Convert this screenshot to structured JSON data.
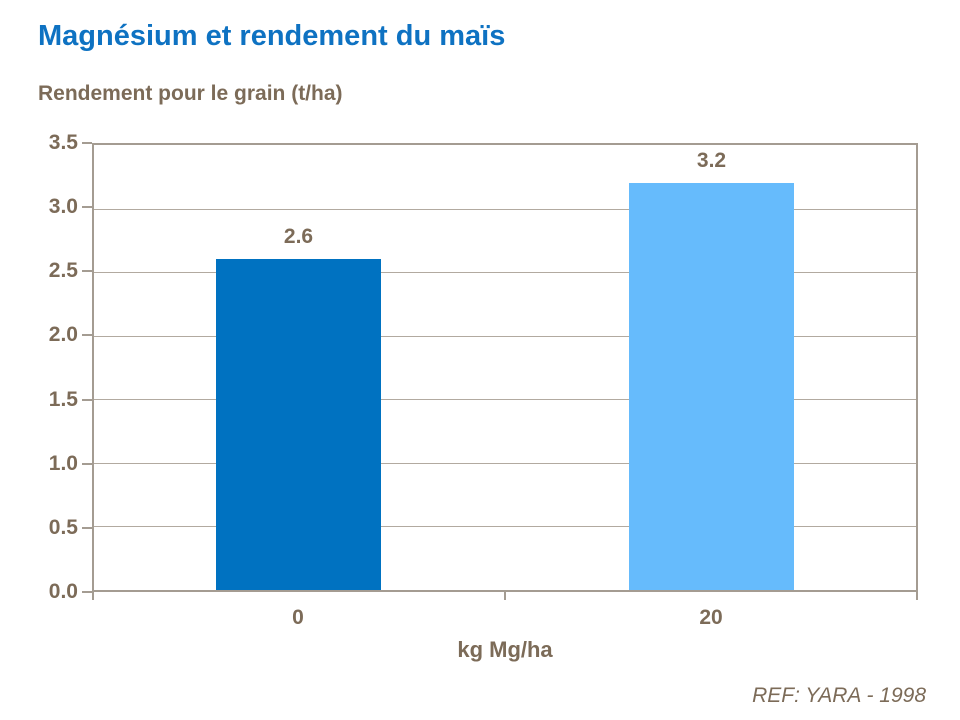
{
  "title": "Magnésium et rendement du maïs",
  "subtitle": "Rendement pour le grain (t/ha)",
  "reference": "REF: YARA - 1998",
  "colors": {
    "title_blue": "#0E72C2",
    "text_brown": "#7C6B58",
    "frame": "#A49C92",
    "gridline": "#B2AAA0",
    "bar_0": "#0072C1",
    "bar_20": "#66BBFC"
  },
  "chart_data": {
    "type": "bar",
    "title": "Magnésium et rendement du maïs",
    "subtitle": "Rendement pour le grain (t/ha)",
    "categories": [
      "0",
      "20"
    ],
    "values": [
      2.6,
      3.2
    ],
    "value_labels": [
      "2.6",
      "3.2"
    ],
    "bar_colors": [
      "#0072C1",
      "#66BBFC"
    ],
    "xlabel": "kg Mg/ha",
    "ylabel": "Rendement pour le grain (t/ha)",
    "ylim": [
      0,
      3.5
    ],
    "ytick_step": 0.5,
    "yticks": [
      "3.5",
      "3.0",
      "2.5",
      "2.0",
      "1.5",
      "1.0",
      "0.5",
      "0.0"
    ],
    "grid": true,
    "legend": false,
    "annotations": [
      "REF: YARA - 1998"
    ]
  }
}
